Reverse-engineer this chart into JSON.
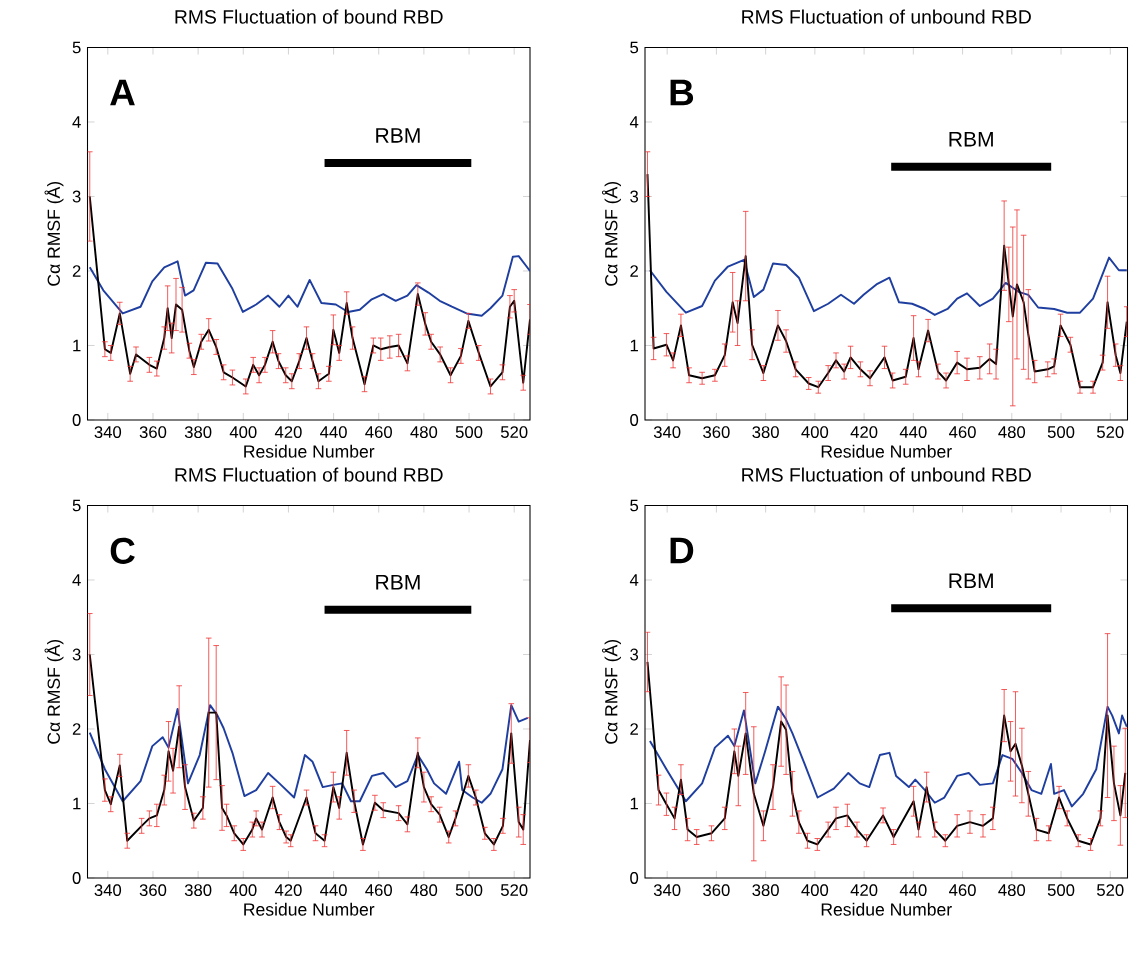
{
  "chart_data": [
    {
      "type": "line",
      "title": "RMS Fluctuation of bound RBD",
      "xlabel": "Residue Number",
      "ylabel": "Cα RMSF (Å)",
      "xlim": [
        331,
        527
      ],
      "ylim": [
        0,
        5
      ],
      "xticks": [
        340,
        360,
        380,
        400,
        420,
        440,
        460,
        480,
        500,
        520
      ],
      "yticks": [
        0,
        1,
        2,
        3,
        4,
        5
      ],
      "annotations": [
        "A",
        "RBM"
      ],
      "series": [
        {
          "color": "#000000",
          "x": [
            436,
            501
          ],
          "values": [
            3.45,
            3.45
          ]
        },
        {
          "color": "#1f3fa0",
          "x": [
            332,
            338,
            346.6,
            354.5,
            359.7,
            365,
            370.9,
            374.2,
            378,
            383.4,
            388.6,
            395.2,
            399.8,
            405.7,
            411,
            416,
            420,
            424,
            429.4,
            434.6,
            441,
            446.4,
            451.6,
            456.9,
            462,
            467.5,
            472.7,
            476.7,
            482,
            487,
            492.4,
            498.9,
            505.6,
            509.5,
            514.8,
            519.4,
            522,
            527
          ],
          "values": [
            2.05,
            1.74,
            1.43,
            1.52,
            1.86,
            2.05,
            2.13,
            1.67,
            1.74,
            2.11,
            2.1,
            1.76,
            1.45,
            1.55,
            1.67,
            1.52,
            1.67,
            1.52,
            1.88,
            1.57,
            1.55,
            1.45,
            1.48,
            1.62,
            1.69,
            1.6,
            1.67,
            1.81,
            1.71,
            1.6,
            1.52,
            1.43,
            1.4,
            1.5,
            1.67,
            2.19,
            2.2,
            2.0
          ]
        },
        {
          "color": "#000000",
          "x": [
            332,
            338.7,
            341.3,
            345.3,
            349.9,
            352.5,
            358.4,
            361.7,
            365,
            366.5,
            368.3,
            370.2,
            372.9,
            376.1,
            378.1,
            381.4,
            384.7,
            388,
            391.3,
            395.2,
            401.1,
            404.4,
            407,
            409.6,
            413,
            415.6,
            418.8,
            421.5,
            424.8,
            428,
            430.7,
            433.3,
            437.9,
            439.9,
            442.5,
            445.8,
            448.4,
            453.7,
            457.6,
            460.9,
            464.9,
            468.8,
            472.7,
            477.3,
            480.6,
            483.2,
            487.2,
            491.8,
            496.4,
            499.7,
            504.3,
            509.5,
            514.8,
            518.1,
            520,
            524,
            527
          ],
          "values": [
            3.0,
            0.95,
            0.9,
            1.43,
            0.62,
            0.88,
            0.74,
            0.69,
            1.1,
            1.5,
            1.1,
            1.55,
            1.48,
            0.93,
            0.71,
            1.05,
            1.21,
            0.98,
            0.64,
            0.57,
            0.45,
            0.74,
            0.6,
            0.74,
            1.05,
            0.79,
            0.6,
            0.52,
            0.79,
            1.1,
            0.79,
            0.52,
            0.62,
            1.21,
            0.9,
            1.57,
            1.1,
            0.48,
            1.0,
            0.95,
            0.98,
            1.0,
            0.76,
            1.69,
            1.29,
            1.05,
            0.88,
            0.6,
            0.86,
            1.33,
            0.9,
            0.45,
            0.64,
            1.52,
            1.6,
            0.5,
            1.35
          ],
          "errors": [
            0.6,
            0.1,
            0.1,
            0.15,
            0.1,
            0.1,
            0.1,
            0.1,
            0.15,
            0.3,
            0.2,
            0.35,
            0.3,
            0.1,
            0.1,
            0.1,
            0.15,
            0.1,
            0.1,
            0.1,
            0.1,
            0.1,
            0.1,
            0.1,
            0.15,
            0.1,
            0.1,
            0.1,
            0.1,
            0.15,
            0.1,
            0.1,
            0.1,
            0.2,
            0.1,
            0.15,
            0.15,
            0.1,
            0.1,
            0.15,
            0.15,
            0.15,
            0.1,
            0.15,
            0.15,
            0.1,
            0.1,
            0.1,
            0.1,
            0.1,
            0.1,
            0.1,
            0.1,
            0.15,
            0.15,
            0.1,
            0.2
          ]
        }
      ]
    },
    {
      "type": "line",
      "title": "RMS Fluctuation of unbound RBD",
      "xlabel": "Residue Number",
      "ylabel": "Cα RMSF (Å)",
      "xlim": [
        331,
        527
      ],
      "ylim": [
        0,
        5
      ],
      "xticks": [
        340,
        360,
        380,
        400,
        420,
        440,
        460,
        480,
        500,
        520
      ],
      "yticks": [
        0,
        1,
        2,
        3,
        4,
        5
      ],
      "annotations": [
        "B",
        "RBM"
      ],
      "series": [
        {
          "color": "#000000",
          "x": [
            431,
            496
          ],
          "values": [
            3.4,
            3.4
          ]
        },
        {
          "color": "#1f3fa0",
          "x": [
            333,
            339.7,
            347.6,
            354.2,
            359.4,
            364.7,
            371.2,
            375.2,
            379.1,
            383,
            388.3,
            393.5,
            399.6,
            405.4,
            410.6,
            415.9,
            419.8,
            425,
            430.3,
            434.2,
            439.5,
            444.7,
            448.7,
            453.9,
            457.8,
            461.8,
            467,
            472.3,
            477.5,
            482.8,
            486.7,
            490.7,
            497.2,
            502.5,
            507.7,
            513,
            519.5,
            523.5,
            526.7
          ],
          "values": [
            2.01,
            1.72,
            1.44,
            1.53,
            1.87,
            2.06,
            2.15,
            1.65,
            1.75,
            2.1,
            2.08,
            1.91,
            1.46,
            1.56,
            1.68,
            1.56,
            1.68,
            1.82,
            1.91,
            1.58,
            1.56,
            1.49,
            1.41,
            1.49,
            1.63,
            1.7,
            1.53,
            1.63,
            1.84,
            1.72,
            1.68,
            1.51,
            1.49,
            1.44,
            1.44,
            1.63,
            2.18,
            2.01,
            2.01
          ]
        },
        {
          "color": "#000000",
          "x": [
            332,
            334.5,
            339.7,
            342.4,
            345.6,
            348.9,
            354.2,
            359.4,
            363.4,
            366.6,
            368.6,
            371.9,
            374.5,
            379.1,
            385,
            388.3,
            392.2,
            397.5,
            401.4,
            405.4,
            408.6,
            411.9,
            414.5,
            418.5,
            422.4,
            428.3,
            431.6,
            436.9,
            440.1,
            442.1,
            446,
            450,
            453.3,
            457.8,
            461.8,
            467,
            471,
            473.6,
            476.9,
            478.8,
            480.4,
            482.1,
            484.8,
            486.7,
            489.3,
            494.6,
            497.2,
            499.8,
            503.8,
            507.7,
            513,
            516.9,
            518.9,
            522.2,
            524.1,
            526.7
          ],
          "values": [
            3.3,
            0.96,
            1.01,
            0.8,
            1.27,
            0.6,
            0.56,
            0.6,
            0.87,
            1.58,
            1.3,
            2.2,
            1.01,
            0.63,
            1.27,
            1.06,
            0.68,
            0.49,
            0.44,
            0.63,
            0.8,
            0.65,
            0.84,
            0.68,
            0.56,
            0.84,
            0.53,
            0.58,
            1.1,
            0.68,
            1.2,
            0.65,
            0.53,
            0.77,
            0.68,
            0.7,
            0.82,
            0.75,
            2.34,
            1.82,
            1.39,
            1.82,
            1.58,
            1.15,
            0.65,
            0.68,
            0.72,
            1.27,
            1.01,
            0.44,
            0.44,
            0.77,
            1.58,
            0.87,
            0.63,
            1.32
          ],
          "errors": [
            0.3,
            0.15,
            0.15,
            0.1,
            0.15,
            0.1,
            0.08,
            0.08,
            0.15,
            0.4,
            0.3,
            0.6,
            0.2,
            0.1,
            0.2,
            0.15,
            0.1,
            0.08,
            0.08,
            0.1,
            0.1,
            0.1,
            0.15,
            0.1,
            0.1,
            0.15,
            0.1,
            0.1,
            0.3,
            0.1,
            0.15,
            0.1,
            0.1,
            0.15,
            0.15,
            0.15,
            0.2,
            0.2,
            0.6,
            0.5,
            1.2,
            1.0,
            0.9,
            0.6,
            0.15,
            0.1,
            0.1,
            0.15,
            0.1,
            0.08,
            0.08,
            0.1,
            0.35,
            0.15,
            0.1,
            0.2
          ]
        }
      ]
    },
    {
      "type": "line",
      "title": "RMS Fluctuation of bound RBD",
      "xlabel": "Residue Number",
      "ylabel": "Cα RMSF (Å)",
      "xlim": [
        331,
        527
      ],
      "ylim": [
        0,
        5
      ],
      "xticks": [
        340,
        360,
        380,
        400,
        420,
        440,
        460,
        480,
        500,
        520
      ],
      "yticks": [
        0,
        1,
        2,
        3,
        4,
        5
      ],
      "annotations": [
        "C",
        "RBM"
      ],
      "series": [
        {
          "color": "#000000",
          "x": [
            436,
            501
          ],
          "values": [
            3.6,
            3.6
          ]
        },
        {
          "color": "#1f3fa0",
          "x": [
            332,
            338.7,
            346.6,
            354.5,
            359.7,
            364.3,
            366.9,
            370.9,
            375.5,
            380.7,
            385.3,
            388.6,
            391.3,
            395.2,
            400.5,
            405.7,
            411,
            416,
            422.5,
            427.3,
            430.7,
            435.2,
            439.9,
            443.8,
            447.7,
            451.6,
            457,
            462,
            467.5,
            472.7,
            477.3,
            481.3,
            484.5,
            489.8,
            495.6,
            497,
            501.6,
            505.6,
            509.5,
            514.8,
            518.7,
            522,
            526
          ],
          "values": [
            1.95,
            1.46,
            1.03,
            1.3,
            1.77,
            1.89,
            1.75,
            2.27,
            1.27,
            1.65,
            2.32,
            2.18,
            2.01,
            1.68,
            1.1,
            1.18,
            1.41,
            1.27,
            1.08,
            1.65,
            1.56,
            1.22,
            1.25,
            1.27,
            1.03,
            1.03,
            1.37,
            1.41,
            1.22,
            1.3,
            1.65,
            1.46,
            1.27,
            1.13,
            1.56,
            1.18,
            1.08,
            1.01,
            1.13,
            1.46,
            2.32,
            2.1,
            2.15
          ]
        },
        {
          "color": "#000000",
          "x": [
            332,
            338.7,
            341.3,
            345.3,
            348.6,
            355,
            358.4,
            361.7,
            365,
            366.9,
            368.9,
            371.6,
            374.2,
            378.1,
            382.1,
            384.7,
            388,
            390.6,
            392.6,
            396,
            400,
            404,
            405.7,
            408.3,
            413,
            416,
            419,
            421,
            428,
            432,
            436,
            439.9,
            442.5,
            445.8,
            449.1,
            453,
            458.3,
            462,
            468.8,
            472.7,
            477.3,
            480,
            483.2,
            487,
            491,
            494,
            499.7,
            503,
            507,
            511,
            515,
            518.7,
            522,
            524,
            527
          ],
          "values": [
            3.0,
            1.18,
            0.99,
            1.51,
            0.5,
            0.7,
            0.8,
            0.84,
            1.18,
            1.7,
            1.44,
            2.03,
            1.22,
            0.77,
            0.94,
            2.22,
            2.22,
            0.94,
            0.84,
            0.6,
            0.45,
            0.65,
            0.8,
            0.65,
            1.08,
            0.75,
            0.55,
            0.5,
            1.08,
            0.6,
            0.5,
            1.22,
            0.94,
            1.68,
            1.03,
            0.45,
            1.01,
            0.91,
            0.87,
            0.72,
            1.68,
            1.22,
            0.99,
            0.85,
            0.55,
            0.8,
            1.37,
            1.08,
            0.6,
            0.45,
            0.7,
            1.94,
            0.75,
            0.65,
            1.85
          ],
          "errors": [
            0.55,
            0.15,
            0.1,
            0.15,
            0.1,
            0.1,
            0.1,
            0.15,
            0.2,
            0.4,
            0.3,
            0.55,
            0.3,
            0.1,
            0.15,
            1.0,
            0.9,
            0.3,
            0.15,
            0.1,
            0.08,
            0.1,
            0.1,
            0.1,
            0.15,
            0.1,
            0.08,
            0.08,
            0.1,
            0.1,
            0.08,
            0.2,
            0.15,
            0.3,
            0.15,
            0.08,
            0.1,
            0.1,
            0.1,
            0.1,
            0.2,
            0.2,
            0.1,
            0.1,
            0.08,
            0.1,
            0.15,
            0.1,
            0.08,
            0.08,
            0.1,
            0.4,
            0.2,
            0.2,
            0.3
          ]
        }
      ]
    },
    {
      "type": "line",
      "title": "RMS Fluctuation of unbound RBD",
      "xlabel": "Residue Number",
      "ylabel": "Cα RMSF (Å)",
      "xlim": [
        331,
        527
      ],
      "ylim": [
        0,
        5
      ],
      "xticks": [
        340,
        360,
        380,
        400,
        420,
        440,
        460,
        480,
        500,
        520
      ],
      "yticks": [
        0,
        1,
        2,
        3,
        4,
        5
      ],
      "annotations": [
        "D",
        "RBM"
      ],
      "series": [
        {
          "color": "#000000",
          "x": [
            431,
            496
          ],
          "values": [
            3.62,
            3.62
          ]
        },
        {
          "color": "#1f3fa0",
          "x": [
            333,
            339.7,
            347.6,
            354.2,
            359.4,
            364.7,
            367.3,
            371.2,
            375.8,
            379.8,
            385,
            388.3,
            390.9,
            395.5,
            401.1,
            407.7,
            413.6,
            418.2,
            422.1,
            426.4,
            430.3,
            433,
            438.2,
            440.8,
            444.7,
            448.7,
            452.6,
            457.8,
            462.5,
            467,
            472.3,
            476.2,
            480.2,
            484.1,
            488,
            492,
            495.9,
            497.2,
            501.2,
            504.4,
            509,
            514.3,
            518.9,
            520.8,
            523.5,
            524.8,
            526.7
          ],
          "values": [
            1.84,
            1.46,
            1.03,
            1.27,
            1.75,
            1.91,
            1.77,
            2.25,
            1.27,
            1.7,
            2.3,
            2.13,
            1.94,
            1.56,
            1.08,
            1.2,
            1.41,
            1.27,
            1.22,
            1.65,
            1.68,
            1.37,
            1.22,
            1.32,
            1.18,
            1.01,
            1.08,
            1.37,
            1.41,
            1.25,
            1.27,
            1.65,
            1.6,
            1.41,
            1.18,
            1.13,
            1.53,
            1.13,
            1.18,
            0.96,
            1.13,
            1.46,
            2.3,
            2.18,
            1.94,
            2.18,
            2.03
          ]
        },
        {
          "color": "#000000",
          "x": [
            332,
            336.5,
            339.7,
            343,
            345.6,
            348.3,
            352,
            358,
            363.4,
            367.3,
            368.9,
            371.9,
            375.2,
            379.1,
            383,
            386.3,
            388.3,
            390.9,
            393.5,
            397,
            401,
            405.4,
            408.6,
            413.2,
            417.1,
            421,
            427.7,
            432,
            440.1,
            442.1,
            445.4,
            448.7,
            453,
            457.8,
            463,
            468.3,
            472.3,
            476.9,
            479.5,
            481.5,
            484.1,
            486.7,
            490,
            495,
            499.2,
            502.5,
            507,
            512,
            516,
            518.9,
            521.5,
            524.1,
            526.1
          ],
          "values": [
            2.9,
            1.18,
            0.99,
            0.8,
            1.32,
            0.65,
            0.55,
            0.6,
            0.8,
            1.7,
            1.37,
            1.94,
            1.13,
            0.7,
            1.22,
            2.1,
            1.99,
            1.13,
            0.75,
            0.5,
            0.45,
            0.65,
            0.8,
            0.84,
            0.65,
            0.5,
            0.84,
            0.55,
            1.03,
            0.65,
            1.22,
            0.65,
            0.5,
            0.7,
            0.75,
            0.7,
            0.8,
            2.18,
            1.7,
            1.8,
            1.51,
            1.13,
            0.65,
            0.6,
            1.08,
            0.8,
            0.5,
            0.45,
            0.8,
            2.18,
            1.27,
            0.84,
            1.41
          ],
          "errors": [
            0.4,
            0.2,
            0.15,
            0.15,
            0.2,
            0.15,
            0.1,
            0.1,
            0.15,
            0.3,
            0.4,
            0.55,
            0.9,
            0.2,
            0.3,
            0.6,
            0.6,
            0.3,
            0.15,
            0.1,
            0.08,
            0.1,
            0.15,
            0.15,
            0.1,
            0.08,
            0.1,
            0.1,
            0.2,
            0.1,
            0.2,
            0.1,
            0.08,
            0.15,
            0.15,
            0.15,
            0.15,
            0.35,
            0.4,
            0.7,
            0.5,
            0.3,
            0.15,
            0.1,
            0.15,
            0.1,
            0.08,
            0.08,
            0.1,
            1.1,
            0.5,
            0.4,
            0.6
          ]
        }
      ]
    }
  ]
}
